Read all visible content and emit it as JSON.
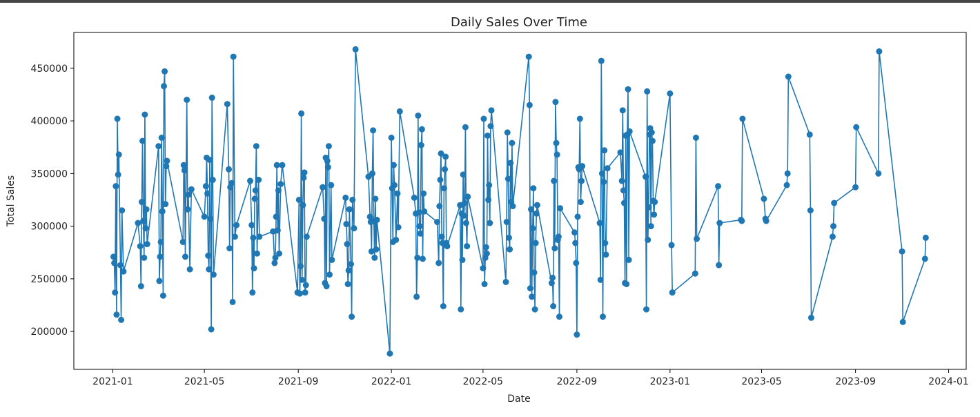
{
  "chart_data": {
    "type": "line",
    "title": "Daily Sales Over Time",
    "x_label": "Date",
    "y_label": "Total Sales",
    "xlim": [
      -51,
      1118
    ],
    "ylim": [
      164000,
      484000
    ],
    "xticks": [
      {
        "value": 0,
        "label": "2021-01"
      },
      {
        "value": 120,
        "label": "2021-05"
      },
      {
        "value": 243,
        "label": "2021-09"
      },
      {
        "value": 365,
        "label": "2022-01"
      },
      {
        "value": 485,
        "label": "2022-05"
      },
      {
        "value": 608,
        "label": "2022-09"
      },
      {
        "value": 730,
        "label": "2023-01"
      },
      {
        "value": 850,
        "label": "2023-05"
      },
      {
        "value": 973,
        "label": "2023-09"
      },
      {
        "value": 1095,
        "label": "2024-01"
      }
    ],
    "yticks": [
      200000,
      250000,
      300000,
      350000,
      400000,
      450000
    ],
    "grid": false,
    "series": [
      {
        "name": "Total Sales",
        "color": "#1f77b4",
        "x": [
          1,
          2,
          3,
          4,
          5,
          6,
          7,
          8,
          10,
          11,
          12,
          14,
          33,
          36,
          37,
          38,
          39,
          40,
          41,
          42,
          43,
          44,
          45,
          60,
          61,
          62,
          63,
          64,
          65,
          66,
          67,
          68,
          69,
          70,
          71,
          92,
          93,
          94,
          95,
          97,
          98,
          99,
          101,
          103,
          120,
          122,
          123,
          124,
          125,
          126,
          127,
          128,
          129,
          130,
          131,
          132,
          150,
          152,
          153,
          154,
          156,
          157,
          158,
          160,
          162,
          180,
          182,
          183,
          184,
          185,
          186,
          187,
          188,
          189,
          191,
          192,
          210,
          212,
          213,
          214,
          215,
          216,
          217,
          218,
          220,
          222,
          242,
          244,
          245,
          246,
          247,
          248,
          249,
          250,
          251,
          252,
          253,
          254,
          275,
          277,
          278,
          279,
          280,
          281,
          282,
          283,
          284,
          286,
          287,
          305,
          306,
          307,
          308,
          309,
          310,
          312,
          313,
          314,
          316,
          318,
          335,
          337,
          338,
          339,
          340,
          341,
          342,
          343,
          344,
          345,
          346,
          363,
          365,
          366,
          367,
          368,
          369,
          371,
          373,
          374,
          376,
          395,
          397,
          398,
          399,
          400,
          401,
          402,
          403,
          404,
          405,
          406,
          407,
          408,
          425,
          427,
          428,
          429,
          430,
          431,
          432,
          433,
          434,
          435,
          436,
          437,
          438,
          455,
          456,
          457,
          458,
          459,
          460,
          461,
          462,
          463,
          464,
          465,
          485,
          486,
          487,
          488,
          489,
          490,
          491,
          492,
          493,
          494,
          495,
          496,
          515,
          516,
          517,
          518,
          519,
          520,
          521,
          522,
          523,
          524,
          545,
          546,
          547,
          548,
          549,
          550,
          551,
          552,
          553,
          554,
          555,
          556,
          575,
          576,
          577,
          578,
          579,
          580,
          581,
          582,
          583,
          584,
          585,
          586,
          605,
          606,
          607,
          608,
          609,
          610,
          611,
          612,
          613,
          614,
          615,
          638,
          639,
          640,
          641,
          642,
          643,
          644,
          645,
          646,
          648,
          665,
          667,
          668,
          669,
          670,
          671,
          672,
          673,
          674,
          675,
          676,
          677,
          698,
          699,
          700,
          701,
          702,
          703,
          704,
          705,
          706,
          707,
          708,
          709,
          710,
          730,
          732,
          733,
          763,
          764,
          765,
          793,
          794,
          795,
          823,
          824,
          825,
          853,
          855,
          856,
          883,
          884,
          885,
          913,
          914,
          915,
          943,
          944,
          945,
          973,
          974,
          1003,
          1004,
          1034,
          1035,
          1064,
          1065
        ],
        "values": [
          271000,
          265000,
          237000,
          338000,
          216000,
          402000,
          349000,
          368000,
          263000,
          211000,
          315000,
          257000,
          303000,
          281000,
          243000,
          323000,
          381000,
          305000,
          270000,
          406000,
          298000,
          316000,
          283000,
          376000,
          248000,
          271000,
          285000,
          384000,
          314000,
          234000,
          433000,
          447000,
          321000,
          357000,
          362000,
          285000,
          358000,
          353000,
          271000,
          420000,
          316000,
          330000,
          259000,
          335000,
          309000,
          338000,
          365000,
          331000,
          272000,
          259000,
          363000,
          307000,
          202000,
          422000,
          344000,
          254000,
          416000,
          354000,
          279000,
          337000,
          341000,
          228000,
          461000,
          290000,
          301000,
          343000,
          301000,
          237000,
          289000,
          260000,
          326000,
          334000,
          376000,
          274000,
          344000,
          290000,
          295000,
          265000,
          270000,
          309000,
          358000,
          296000,
          334000,
          274000,
          340000,
          358000,
          237000,
          325000,
          236000,
          262000,
          407000,
          249000,
          320000,
          346000,
          351000,
          237000,
          244000,
          290000,
          337000,
          307000,
          246000,
          365000,
          243000,
          362000,
          356000,
          376000,
          254000,
          339000,
          268000,
          327000,
          302000,
          283000,
          245000,
          258000,
          316000,
          264000,
          214000,
          325000,
          298000,
          468000,
          347000,
          309000,
          304000,
          276000,
          350000,
          391000,
          305000,
          270000,
          326000,
          278000,
          306000,
          179000,
          384000,
          336000,
          285000,
          358000,
          339000,
          287000,
          331000,
          299000,
          409000,
          327000,
          312000,
          233000,
          270000,
          405000,
          313000,
          300000,
          293000,
          377000,
          392000,
          269000,
          331000,
          314000,
          304000,
          265000,
          319000,
          344000,
          369000,
          290000,
          284000,
          224000,
          336000,
          354000,
          366000,
          284000,
          281000,
          320000,
          221000,
          312000,
          268000,
          349000,
          310000,
          322000,
          394000,
          303000,
          281000,
          328000,
          260000,
          402000,
          245000,
          270000,
          280000,
          274000,
          386000,
          325000,
          339000,
          303000,
          395000,
          410000,
          247000,
          304000,
          389000,
          345000,
          289000,
          278000,
          360000,
          323000,
          379000,
          319000,
          461000,
          415000,
          241000,
          316000,
          233000,
          298000,
          336000,
          256000,
          221000,
          284000,
          312000,
          320000,
          246000,
          251000,
          224000,
          343000,
          279000,
          418000,
          379000,
          368000,
          287000,
          290000,
          214000,
          317000,
          294000,
          284000,
          265000,
          197000,
          309000,
          356000,
          354000,
          402000,
          323000,
          343000,
          357000,
          303000,
          249000,
          457000,
          350000,
          214000,
          342000,
          372000,
          284000,
          273000,
          355000,
          370000,
          343000,
          410000,
          334000,
          322000,
          246000,
          386000,
          245000,
          387000,
          430000,
          268000,
          390000,
          347000,
          221000,
          428000,
          287000,
          318000,
          387000,
          393000,
          300000,
          389000,
          381000,
          324000,
          311000,
          323000,
          426000,
          282000,
          237000,
          255000,
          384000,
          288000,
          338000,
          263000,
          303000,
          306000,
          305000,
          402000,
          326000,
          307000,
          305000,
          339000,
          350000,
          442000,
          387000,
          315000,
          213000,
          290000,
          300000,
          322000,
          337000,
          394000,
          350000,
          466000,
          276000,
          209000,
          269000,
          289000
        ]
      }
    ]
  }
}
